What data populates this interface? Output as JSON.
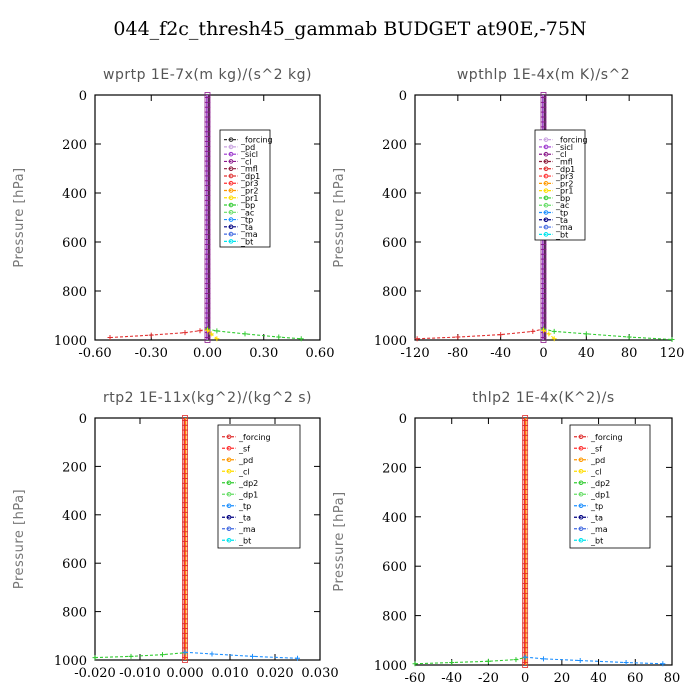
{
  "figure_title": "044_f2c_thresh45_gammab  BUDGET at90E,-75N",
  "chart_data": [
    {
      "type": "line",
      "title": "wprtp   1E-7x(m kg)/(s^2 kg)",
      "ylabel": "Pressure [hPa]",
      "xlim": [
        -0.6,
        0.6
      ],
      "ylim": [
        1000,
        0
      ],
      "xticks": [
        "-0.60",
        "-0.30",
        "0.00",
        "0.30",
        "0.60"
      ],
      "xtick_values": [
        -0.6,
        -0.3,
        0.0,
        0.3,
        0.6
      ],
      "yticks": [
        "0",
        "200",
        "400",
        "600",
        "800",
        "1000"
      ],
      "ytick_values": [
        0,
        200,
        400,
        600,
        800,
        1000
      ],
      "legend": {
        "placement": "top-right",
        "entries": [
          {
            "label": "_forcing",
            "color": "#333333"
          },
          {
            "label": "_pd",
            "color": "#c8a0e0"
          },
          {
            "label": "_sicl",
            "color": "#9932cc"
          },
          {
            "label": "_cl",
            "color": "#8b1a8b"
          },
          {
            "label": "_mfl",
            "color": "#8b1a3a"
          },
          {
            "label": "_dp1",
            "color": "#e03030"
          },
          {
            "label": "_pr3",
            "color": "#ff3030"
          },
          {
            "label": "_pr2",
            "color": "#ff9900"
          },
          {
            "label": "_pr1",
            "color": "#ffdd00"
          },
          {
            "label": "_bp",
            "color": "#33cc33"
          },
          {
            "label": "_ac",
            "color": "#66dd66"
          },
          {
            "label": "_tp",
            "color": "#1e90ff"
          },
          {
            "label": "_ta",
            "color": "#000080"
          },
          {
            "label": "_ma",
            "color": "#4169e1"
          },
          {
            "label": "_bt",
            "color": "#00e5ee"
          }
        ]
      },
      "series": [
        {
          "color": "#e03030",
          "x": [
            -0.52,
            -0.3,
            -0.12,
            -0.04,
            0.0
          ],
          "y": [
            990,
            980,
            970,
            962,
            955
          ]
        },
        {
          "color": "#33cc33",
          "x": [
            0.0,
            0.05,
            0.2,
            0.38,
            0.5
          ],
          "y": [
            955,
            963,
            975,
            988,
            995
          ]
        },
        {
          "color": "#ffdd00",
          "x": [
            0.0,
            0.02,
            0.05
          ],
          "y": [
            960,
            975,
            995
          ]
        }
      ]
    },
    {
      "type": "line",
      "title": "wpthlp   1E-4x(m K)/s^2",
      "ylabel": "Pressure [hPa]",
      "xlim": [
        -120,
        120
      ],
      "ylim": [
        1000,
        0
      ],
      "xticks": [
        "-120",
        "-80",
        "-40",
        "0",
        "40",
        "80",
        "120"
      ],
      "xtick_values": [
        -120,
        -80,
        -40,
        0,
        40,
        80,
        120
      ],
      "yticks": [
        "0",
        "200",
        "400",
        "600",
        "800",
        "1000"
      ],
      "ytick_values": [
        0,
        200,
        400,
        600,
        800,
        1000
      ],
      "legend": {
        "placement": "top-right",
        "entries": [
          {
            "label": "_forcing",
            "color": "#c8a0e0"
          },
          {
            "label": "_sicl",
            "color": "#9932cc"
          },
          {
            "label": "_cl",
            "color": "#8b1a8b"
          },
          {
            "label": "_mfl",
            "color": "#8b1a3a"
          },
          {
            "label": "_dp1",
            "color": "#e03030"
          },
          {
            "label": "_pr3",
            "color": "#ff3030"
          },
          {
            "label": "_pr2",
            "color": "#ff9900"
          },
          {
            "label": "_pr1",
            "color": "#ffdd00"
          },
          {
            "label": "_bp",
            "color": "#33cc33"
          },
          {
            "label": "_ac",
            "color": "#66dd66"
          },
          {
            "label": "_tp",
            "color": "#1e90ff"
          },
          {
            "label": "_ta",
            "color": "#000080"
          },
          {
            "label": "_ma",
            "color": "#4169e1"
          },
          {
            "label": "_bt",
            "color": "#00e5ee"
          }
        ]
      },
      "series": [
        {
          "color": "#e03030",
          "x": [
            -118,
            -80,
            -40,
            -10,
            0
          ],
          "y": [
            995,
            988,
            978,
            965,
            955
          ]
        },
        {
          "color": "#33cc33",
          "x": [
            0,
            10,
            40,
            80,
            120
          ],
          "y": [
            955,
            965,
            975,
            988,
            998
          ]
        },
        {
          "color": "#ffdd00",
          "x": [
            0,
            5,
            10
          ],
          "y": [
            960,
            975,
            995
          ]
        }
      ]
    },
    {
      "type": "line",
      "title": "rtp2   1E-11x(kg^2)/(kg^2 s)",
      "ylabel": "Pressure [hPa]",
      "xlim": [
        -0.02,
        0.03
      ],
      "ylim": [
        1000,
        0
      ],
      "xticks": [
        "-0.020",
        "-0.010",
        "0.000",
        "0.010",
        "0.020",
        "0.030"
      ],
      "xtick_values": [
        -0.02,
        -0.01,
        0.0,
        0.01,
        0.02,
        0.03
      ],
      "yticks": [
        "0",
        "200",
        "400",
        "600",
        "800",
        "1000"
      ],
      "ytick_values": [
        0,
        200,
        400,
        600,
        800,
        1000
      ],
      "legend": {
        "placement": "top-right",
        "entries": [
          {
            "label": "_forcing",
            "color": "#e03030"
          },
          {
            "label": "_sf",
            "color": "#ff3030"
          },
          {
            "label": "_pd",
            "color": "#ff9900"
          },
          {
            "label": "_cl",
            "color": "#ffdd00"
          },
          {
            "label": "_dp2",
            "color": "#33cc33"
          },
          {
            "label": "_dp1",
            "color": "#66dd66"
          },
          {
            "label": "_tp",
            "color": "#1e90ff"
          },
          {
            "label": "_ta",
            "color": "#000080"
          },
          {
            "label": "_ma",
            "color": "#4169e1"
          },
          {
            "label": "_bt",
            "color": "#00e5ee"
          }
        ]
      },
      "series": [
        {
          "color": "#33cc33",
          "x": [
            -0.02,
            -0.012,
            -0.005,
            0.0
          ],
          "y": [
            990,
            985,
            978,
            970
          ]
        },
        {
          "color": "#1e90ff",
          "x": [
            0.0,
            0.006,
            0.015,
            0.025
          ],
          "y": [
            968,
            975,
            985,
            993
          ]
        }
      ]
    },
    {
      "type": "line",
      "title": "thlp2   1E-4x(K^2)/s",
      "ylabel": "Pressure [hPa]",
      "xlim": [
        -60,
        80
      ],
      "ylim": [
        1000,
        0
      ],
      "xticks": [
        "-60",
        "-40",
        "-20",
        "0",
        "20",
        "40",
        "60",
        "80"
      ],
      "xtick_values": [
        -60,
        -40,
        -20,
        0,
        20,
        40,
        60,
        80
      ],
      "yticks": [
        "0",
        "200",
        "400",
        "600",
        "800",
        "1000"
      ],
      "ytick_values": [
        0,
        200,
        400,
        600,
        800,
        1000
      ],
      "legend": {
        "placement": "top-right",
        "entries": [
          {
            "label": "_forcing",
            "color": "#e03030"
          },
          {
            "label": "_sf",
            "color": "#ff3030"
          },
          {
            "label": "_pd",
            "color": "#ff9900"
          },
          {
            "label": "_cl",
            "color": "#ffdd00"
          },
          {
            "label": "_dp2",
            "color": "#33cc33"
          },
          {
            "label": "_dp1",
            "color": "#66dd66"
          },
          {
            "label": "_tp",
            "color": "#1e90ff"
          },
          {
            "label": "_ta",
            "color": "#000080"
          },
          {
            "label": "_ma",
            "color": "#4169e1"
          },
          {
            "label": "_bt",
            "color": "#00e5ee"
          }
        ]
      },
      "series": [
        {
          "color": "#33cc33",
          "x": [
            -60,
            -40,
            -20,
            -5,
            0
          ],
          "y": [
            995,
            990,
            985,
            978,
            970
          ]
        },
        {
          "color": "#1e90ff",
          "x": [
            0,
            10,
            30,
            55,
            75
          ],
          "y": [
            968,
            975,
            982,
            990,
            995
          ]
        }
      ]
    }
  ]
}
